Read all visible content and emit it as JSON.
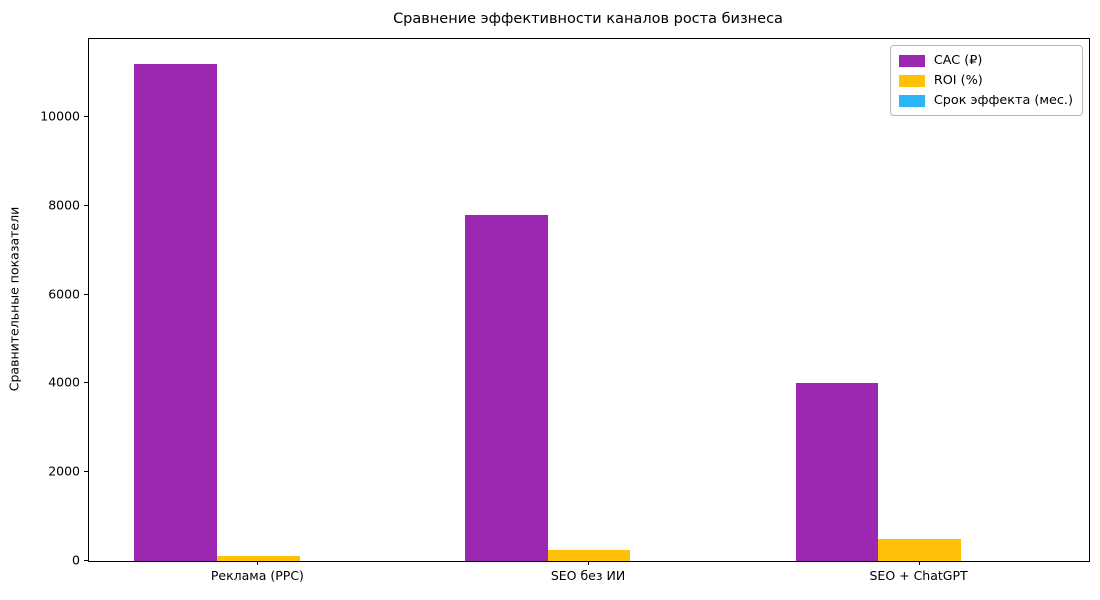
{
  "chart_data": {
    "type": "bar",
    "title": "Сравнение эффективности каналов роста бизнеса",
    "xlabel": "",
    "ylabel": "Сравнительные показатели",
    "categories": [
      "Реклама (PPC)",
      "SEO без ИИ",
      "SEO + ChatGPT"
    ],
    "series": [
      {
        "name": "CAC (₽)",
        "color": "#9C27B0",
        "values": [
          11200,
          7800,
          4000
        ]
      },
      {
        "name": "ROI (%)",
        "color": "#FFC107",
        "values": [
          120,
          250,
          500
        ]
      },
      {
        "name": "Срок эффекта (мес.)",
        "color": "#29B6F6",
        "values": [
          1,
          6,
          12
        ]
      }
    ],
    "yticks": [
      0,
      2000,
      4000,
      6000,
      8000,
      10000
    ],
    "ylim": [
      0,
      11760
    ],
    "xlim": [
      -0.5125,
      2.5125
    ],
    "bar_width": 0.25,
    "grid": false,
    "legend_position": "upper right",
    "text_color": "#000000",
    "background_color": "#ffffff"
  }
}
